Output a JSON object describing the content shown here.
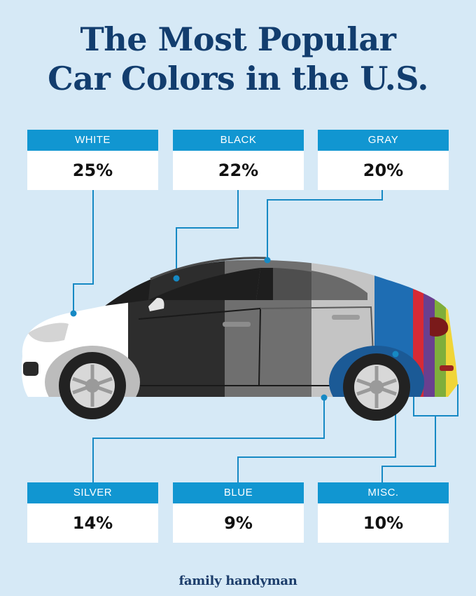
{
  "title": {
    "line1": "The Most Popular",
    "line2": "Car Colors in the U.S."
  },
  "colors": [
    {
      "label": "WHITE",
      "value": "25%"
    },
    {
      "label": "BLACK",
      "value": "22%"
    },
    {
      "label": "GRAY",
      "value": "20%"
    },
    {
      "label": "SILVER",
      "value": "14%"
    },
    {
      "label": "BLUE",
      "value": "9%"
    },
    {
      "label": "MISC.",
      "value": "10%"
    }
  ],
  "palette": {
    "background": "#d6e9f6",
    "title": "#123d6e",
    "accent": "#1196d1",
    "white": "#ffffff",
    "black": "#2d2d2d",
    "gray": "#6f6f6f",
    "silver": "#c4c4c4",
    "blue": "#1e6db3",
    "misc": [
      "#d72a35",
      "#6a3f8f",
      "#7fae3b",
      "#f0d538"
    ]
  },
  "brand": "family handyman"
}
